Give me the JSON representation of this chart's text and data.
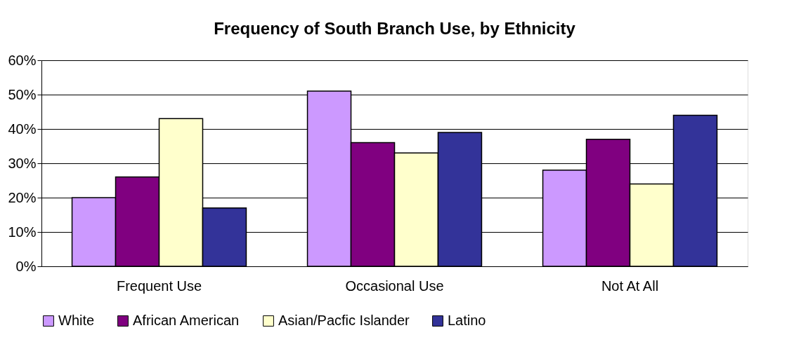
{
  "chart_data": {
    "type": "bar",
    "title": "Frequency of South Branch Use, by Ethnicity",
    "categories": [
      "Frequent Use",
      "Occasional Use",
      "Not At All"
    ],
    "series": [
      {
        "name": "White",
        "color": "#cc99ff",
        "values": [
          20,
          51,
          28
        ]
      },
      {
        "name": "African American",
        "color": "#800080",
        "values": [
          26,
          36,
          37
        ]
      },
      {
        "name": "Asian/Pacfic Islander",
        "color": "#ffffcc",
        "values": [
          43,
          33,
          24
        ]
      },
      {
        "name": "Latino",
        "color": "#333399",
        "values": [
          17,
          39,
          44
        ]
      }
    ],
    "ylim": [
      0,
      60
    ],
    "yticks": [
      {
        "value": 0,
        "label": "0%"
      },
      {
        "value": 10,
        "label": "10%"
      },
      {
        "value": 20,
        "label": "20%"
      },
      {
        "value": 30,
        "label": "30%"
      },
      {
        "value": 40,
        "label": "40%"
      },
      {
        "value": 50,
        "label": "50%"
      },
      {
        "value": 60,
        "label": "60%"
      }
    ],
    "grid": "y",
    "legend": "bottom"
  }
}
